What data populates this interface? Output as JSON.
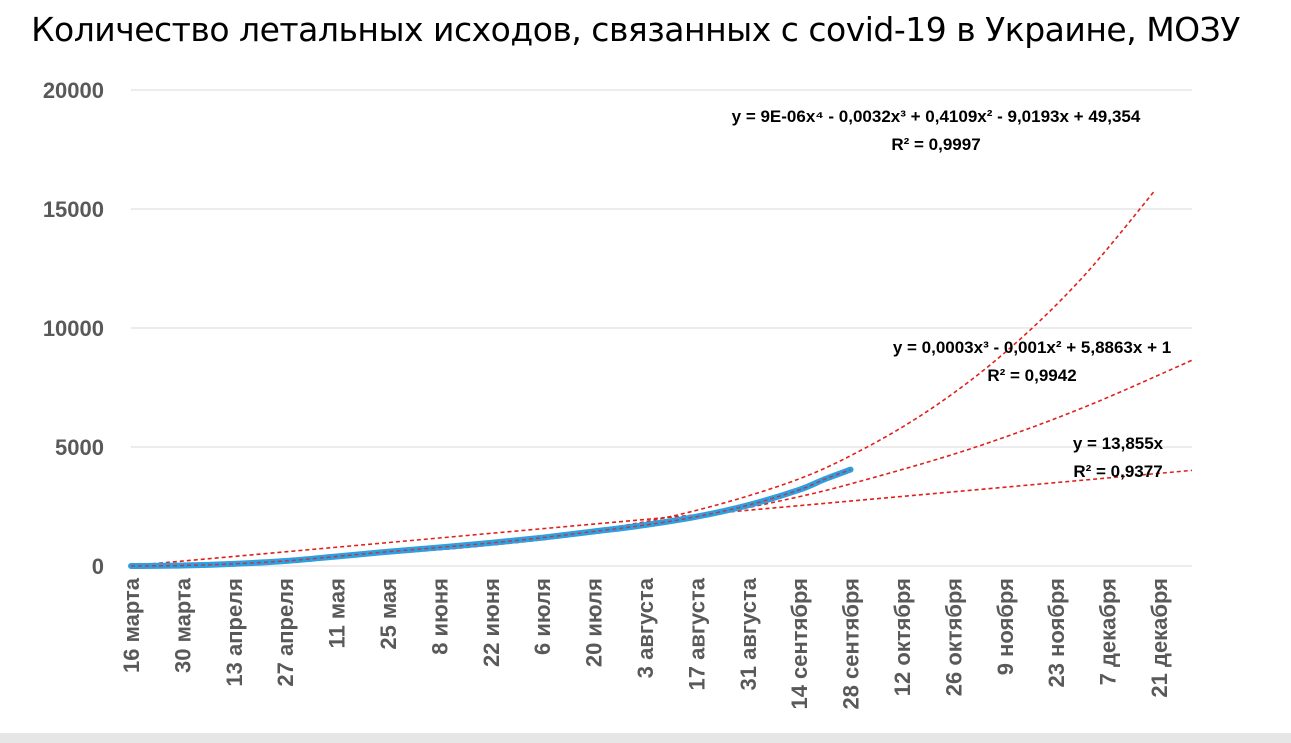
{
  "title": "Количество летальных исходов, связанных с covid-19 в Украине, МОЗУ",
  "colors": {
    "series": "#2e9fe0",
    "trend": "#e0201b",
    "grid": "#d9d9d9",
    "tick": "#595959"
  },
  "chart_data": {
    "type": "line",
    "title": "Количество летальных исходов, связанных с covid-19 в Украине, МОЗУ",
    "xlabel": "",
    "ylabel": "",
    "ylim": [
      0,
      20000
    ],
    "yticks": [
      0,
      5000,
      10000,
      15000,
      20000
    ],
    "grid": true,
    "x_unit": "days since 16 марта (data from 16 марта to 30 сентября)",
    "x_ticks": [
      {
        "x": 1,
        "label": "16 марта"
      },
      {
        "x": 15,
        "label": "30 марта"
      },
      {
        "x": 29,
        "label": "13 апреля"
      },
      {
        "x": 43,
        "label": "27 апреля"
      },
      {
        "x": 57,
        "label": "11 мая"
      },
      {
        "x": 71,
        "label": "25 мая"
      },
      {
        "x": 85,
        "label": "8 июня"
      },
      {
        "x": 99,
        "label": "22 июня"
      },
      {
        "x": 113,
        "label": "6 июля"
      },
      {
        "x": 127,
        "label": "20 июля"
      },
      {
        "x": 141,
        "label": "3 августа"
      },
      {
        "x": 155,
        "label": "17 августа"
      },
      {
        "x": 169,
        "label": "31 августа"
      },
      {
        "x": 183,
        "label": "14 сентября"
      },
      {
        "x": 197,
        "label": "28 сентября"
      },
      {
        "x": 211,
        "label": "12 октября"
      },
      {
        "x": 225,
        "label": "26 октября"
      },
      {
        "x": 239,
        "label": "9 ноября"
      },
      {
        "x": 253,
        "label": "23 ноября"
      },
      {
        "x": 267,
        "label": "7 декабря"
      },
      {
        "x": 281,
        "label": "21 декабря"
      }
    ],
    "series": [
      {
        "x": [
          1,
          15,
          29,
          43,
          57,
          71,
          85,
          99,
          113,
          127,
          141,
          155,
          169,
          183,
          190,
          197
        ],
        "values": [
          0,
          20,
          90,
          210,
          400,
          600,
          780,
          970,
          1190,
          1450,
          1720,
          2070,
          2550,
          3200,
          3650,
          4050
        ]
      }
    ],
    "trendlines": [
      {
        "label": "y = 13,855x",
        "r2": "R² = 0,9377",
        "x": [
          1,
          290
        ],
        "values": [
          14,
          4018
        ]
      },
      {
        "label": "y = 0,0003x³ - 0,001x² + 5,8863x + 1",
        "r2": "R² = 0,9942",
        "x": [
          1,
          30,
          60,
          90,
          120,
          150,
          180,
          200,
          230,
          260,
          290
        ],
        "values": [
          7,
          169,
          415,
          748,
          1231,
          1894,
          2809,
          3577,
          4941,
          6632,
          8645
        ]
      },
      {
        "label": "y = 9E-06x⁴ - 0,0032x³ + 0,4109x² - 9,0193x + 49,354",
        "r2": "R² = 0,9997",
        "x": [
          1,
          30,
          60,
          90,
          120,
          150,
          180,
          200,
          220,
          240,
          260,
          280
        ],
        "values": [
          40,
          106,
          421,
          816,
          1341,
          2150,
          3492,
          4875,
          6718,
          9096,
          12093,
          15798
        ]
      }
    ]
  }
}
